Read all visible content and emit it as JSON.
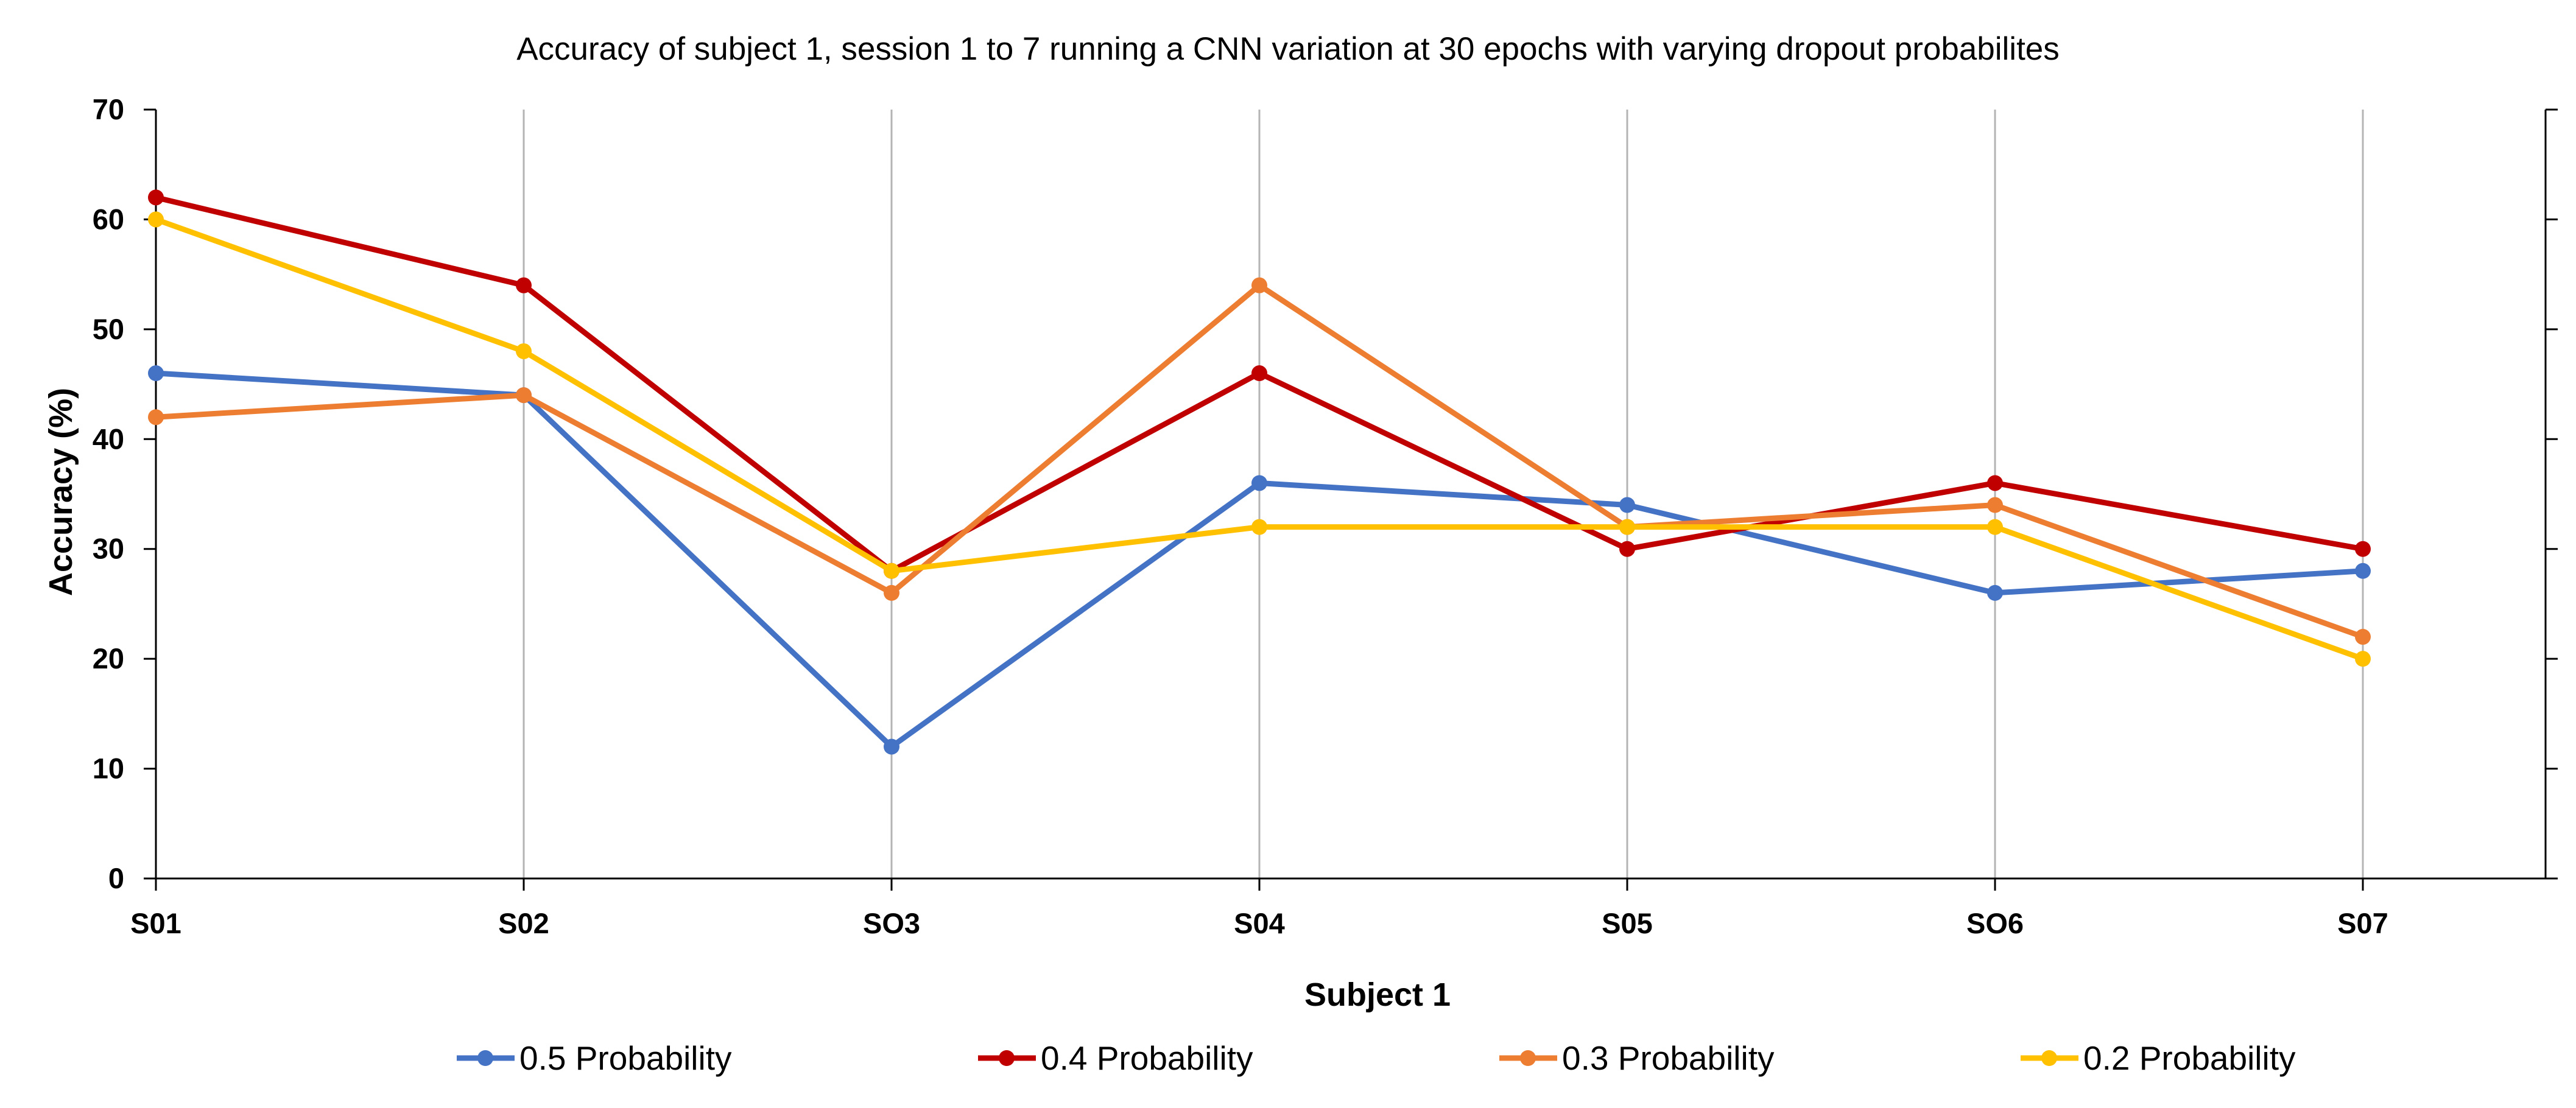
{
  "chart_data": {
    "type": "line",
    "title": "Accuracy of subject 1, session 1 to 7 running a CNN variation at 30 epochs with varying dropout probabilites",
    "xlabel": "Subject 1",
    "ylabel": "Accuracy (%)",
    "categories": [
      "S01",
      "S02",
      "SO3",
      "S04",
      "S05",
      "SO6",
      "S07"
    ],
    "ylim": [
      0,
      70
    ],
    "yticks": [
      0,
      10,
      20,
      30,
      40,
      50,
      60,
      70
    ],
    "vertical_grid": true,
    "horizontal_grid": false,
    "legend_position": "bottom",
    "series": [
      {
        "name": "0.5 Probability",
        "color": "#4472C4",
        "values": [
          46,
          44,
          12,
          36,
          34,
          26,
          28
        ]
      },
      {
        "name": "0.4 Probability",
        "color": "#C00000",
        "values": [
          62,
          54,
          28,
          46,
          30,
          36,
          30
        ]
      },
      {
        "name": "0.3 Probability",
        "color": "#ED7D31",
        "values": [
          42,
          44,
          26,
          54,
          32,
          34,
          22
        ]
      },
      {
        "name": "0.2 Probability",
        "color": "#FFC000",
        "values": [
          60,
          48,
          28,
          32,
          32,
          32,
          20
        ]
      }
    ]
  }
}
